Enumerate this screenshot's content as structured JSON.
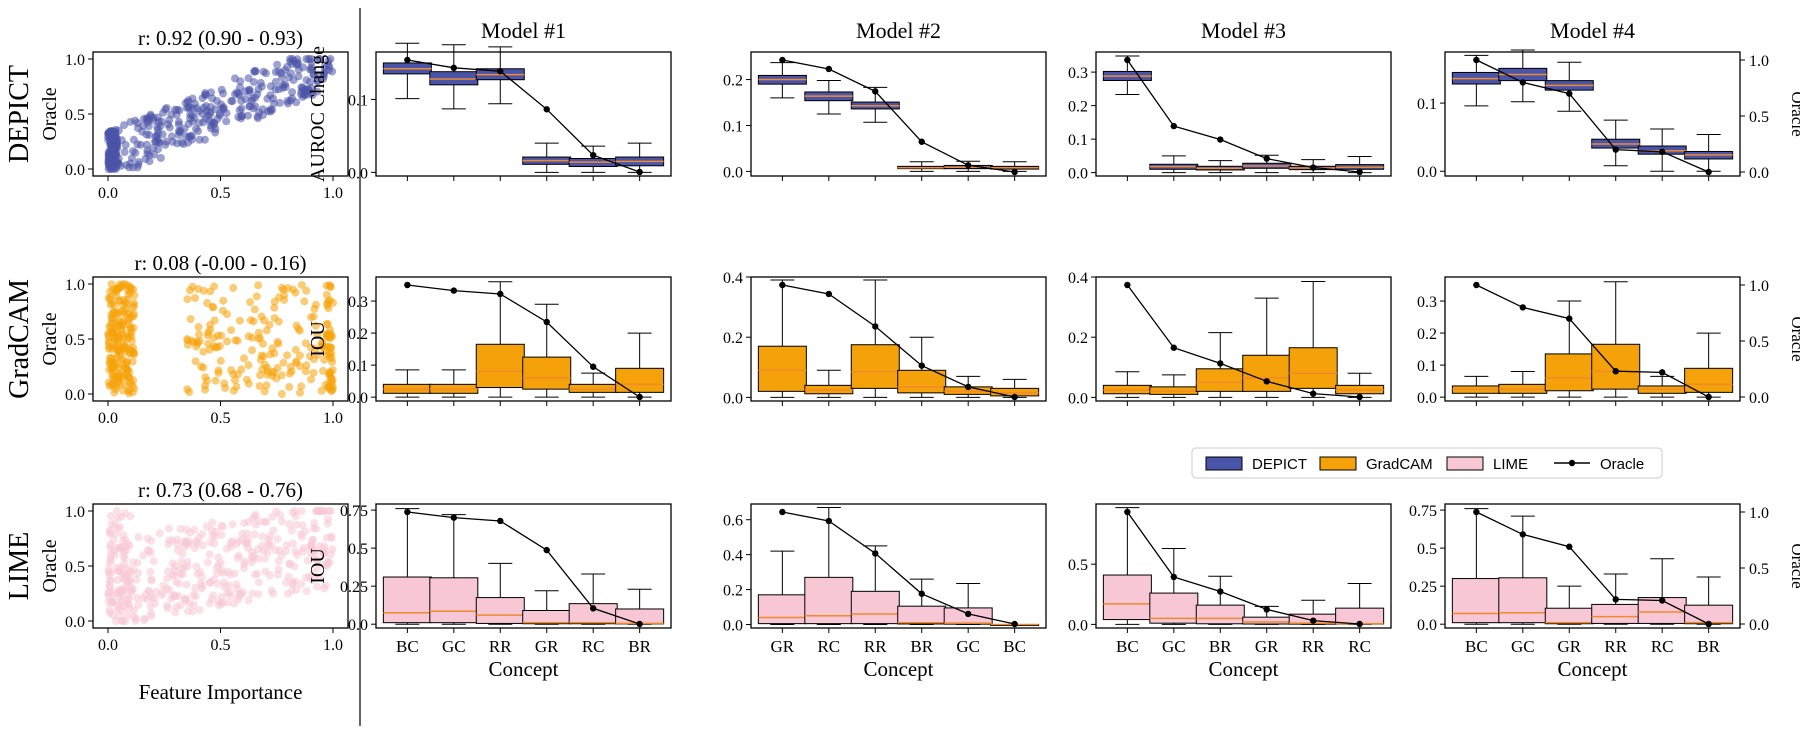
{
  "figure": {
    "divider": true
  },
  "colors": {
    "DEPICT": "#4a54a8",
    "GradCAM": "#f5a20a",
    "LIME": "#f8c7d6",
    "median": "#f08a2a",
    "oracle": "#000000"
  },
  "rows": [
    {
      "key": "DEPICT",
      "label": "DEPICT",
      "ylabel": "AUROC Change"
    },
    {
      "key": "GradCAM",
      "label": "GradCAM",
      "ylabel": "IOU"
    },
    {
      "key": "LIME",
      "label": "LIME",
      "ylabel": "IOU"
    }
  ],
  "scatter": {
    "ylabel": "Oracle",
    "xlabel": "Feature Importance",
    "xticks": [
      "0.0",
      "0.5",
      "1.0"
    ],
    "yticks": [
      "0.0",
      "0.5",
      "1.0"
    ],
    "panels": [
      {
        "method": "DEPICT",
        "r_text": "r: 0.92 (0.90 - 0.93)"
      },
      {
        "method": "GradCAM",
        "r_text": "r: 0.08 (-0.00 - 0.16)"
      },
      {
        "method": "LIME",
        "r_text": "r: 0.73 (0.68 - 0.76)"
      }
    ]
  },
  "legend": [
    {
      "label": "DEPICT",
      "kind": "box",
      "color": "#4a54a8"
    },
    {
      "label": "GradCAM",
      "kind": "box",
      "color": "#f5a20a"
    },
    {
      "label": "LIME",
      "kind": "box",
      "color": "#f8c7d6"
    },
    {
      "label": "Oracle",
      "kind": "line",
      "color": "#000000"
    }
  ],
  "chart_data": [
    {
      "type": "box",
      "model": "Model #1",
      "method": "DEPICT",
      "xlabel": "",
      "ylabel": "AUROC Change",
      "ylim": [
        -0.005,
        0.165
      ],
      "yticks": [
        0.0,
        0.1
      ],
      "oracle_axis_label": "",
      "oracle_ylim": [
        0,
        1
      ],
      "oracle_ticks": [],
      "categories": [
        "BC",
        "GC",
        "RR",
        "GR",
        "RC",
        "BR"
      ],
      "boxes": [
        [
          0.101,
          0.135,
          0.142,
          0.15,
          0.177
        ],
        [
          0.087,
          0.12,
          0.128,
          0.138,
          0.175
        ],
        [
          0.094,
          0.127,
          0.134,
          0.142,
          0.172
        ],
        [
          0.0,
          0.011,
          0.016,
          0.021,
          0.04
        ],
        [
          0.0,
          0.008,
          0.014,
          0.019,
          0.036
        ],
        [
          0.0,
          0.009,
          0.015,
          0.021,
          0.04
        ]
      ],
      "oracle": [
        1.0,
        0.93,
        0.9,
        0.56,
        0.15,
        0.0
      ]
    },
    {
      "type": "box",
      "model": "Model #2",
      "method": "DEPICT",
      "xlabel": "",
      "ylabel": "",
      "ylim": [
        -0.01,
        0.26
      ],
      "yticks": [
        0.0,
        0.1,
        0.2
      ],
      "oracle_axis_label": "",
      "oracle_ylim": [
        0,
        1
      ],
      "oracle_ticks": [],
      "categories": [
        "GR",
        "RC",
        "RR",
        "BR",
        "GC",
        "BC"
      ],
      "boxes": [
        [
          0.16,
          0.19,
          0.2,
          0.209,
          0.237
        ],
        [
          0.125,
          0.154,
          0.164,
          0.173,
          0.198
        ],
        [
          0.107,
          0.136,
          0.143,
          0.151,
          0.183
        ],
        [
          0.0,
          0.006,
          0.008,
          0.011,
          0.021
        ],
        [
          0.0,
          0.006,
          0.009,
          0.013,
          0.022
        ],
        [
          0.0,
          0.005,
          0.008,
          0.011,
          0.021
        ]
      ],
      "oracle": [
        1.0,
        0.92,
        0.72,
        0.27,
        0.06,
        0.0
      ]
    },
    {
      "type": "box",
      "model": "Model #3",
      "method": "DEPICT",
      "xlabel": "",
      "ylabel": "",
      "ylim": [
        -0.01,
        0.36
      ],
      "yticks": [
        0.0,
        0.1,
        0.2,
        0.3
      ],
      "oracle_axis_label": "",
      "oracle_ylim": [
        0,
        1
      ],
      "oracle_ticks": [],
      "categories": [
        "BC",
        "GC",
        "BR",
        "GR",
        "RR",
        "RC"
      ],
      "boxes": [
        [
          0.233,
          0.275,
          0.288,
          0.302,
          0.348
        ],
        [
          0.0,
          0.01,
          0.018,
          0.025,
          0.05
        ],
        [
          0.0,
          0.008,
          0.013,
          0.019,
          0.036
        ],
        [
          0.0,
          0.013,
          0.02,
          0.028,
          0.052
        ],
        [
          0.0,
          0.009,
          0.014,
          0.019,
          0.039
        ],
        [
          0.0,
          0.01,
          0.016,
          0.024,
          0.048
        ]
      ],
      "oracle": [
        1.0,
        0.41,
        0.29,
        0.12,
        0.04,
        0.0
      ]
    },
    {
      "type": "box",
      "model": "Model #4",
      "method": "DEPICT",
      "xlabel": "",
      "ylabel": "",
      "ylim": [
        -0.007,
        0.175
      ],
      "yticks": [
        0.0,
        0.1
      ],
      "oracle_axis_label": "Oracle",
      "oracle_ylim": [
        0,
        1
      ],
      "oracle_ticks": [
        "0.0",
        "0.5",
        "1.0"
      ],
      "categories": [
        "BC",
        "GC",
        "BR",
        "RR",
        "RC",
        "BR"
      ],
      "boxes": [
        [
          0.096,
          0.128,
          0.136,
          0.145,
          0.17
        ],
        [
          0.102,
          0.133,
          0.142,
          0.151,
          0.178
        ],
        [
          0.088,
          0.119,
          0.126,
          0.133,
          0.16
        ],
        [
          0.008,
          0.034,
          0.04,
          0.047,
          0.075
        ],
        [
          0.0,
          0.025,
          0.03,
          0.037,
          0.062
        ],
        [
          0.0,
          0.018,
          0.024,
          0.029,
          0.054
        ]
      ],
      "oracle": [
        1.0,
        0.8,
        0.7,
        0.2,
        0.18,
        0.0
      ]
    },
    {
      "type": "box",
      "model": "Model #1",
      "method": "GradCAM",
      "xlabel": "",
      "ylabel": "IOU",
      "ylim": [
        -0.012,
        0.375
      ],
      "yticks": [
        0.0,
        0.1,
        0.2,
        0.3
      ],
      "oracle_axis_label": "",
      "oracle_ylim": [
        0,
        1
      ],
      "oracle_ticks": [],
      "categories": [
        "BC",
        "GC",
        "RR",
        "GR",
        "RC",
        "BR"
      ],
      "boxes": [
        [
          0.0,
          0.012,
          0.025,
          0.04,
          0.085
        ],
        [
          0.0,
          0.012,
          0.025,
          0.04,
          0.085
        ],
        [
          0.0,
          0.03,
          0.08,
          0.165,
          0.36
        ],
        [
          0.0,
          0.025,
          0.06,
          0.125,
          0.29
        ],
        [
          0.0,
          0.015,
          0.025,
          0.04,
          0.075
        ],
        [
          0.0,
          0.015,
          0.04,
          0.09,
          0.2
        ]
      ],
      "oracle": [
        1.0,
        0.95,
        0.92,
        0.67,
        0.27,
        0.0
      ]
    },
    {
      "type": "box",
      "model": "Model #2",
      "method": "GradCAM",
      "xlabel": "",
      "ylabel": "",
      "ylim": [
        -0.012,
        0.4
      ],
      "yticks": [
        0.0,
        0.2,
        0.4
      ],
      "oracle_axis_label": "",
      "oracle_ylim": [
        0,
        1
      ],
      "oracle_ticks": [],
      "categories": [
        "GR",
        "RC",
        "RR",
        "BR",
        "GC",
        "BC"
      ],
      "boxes": [
        [
          0.0,
          0.02,
          0.09,
          0.17,
          0.39
        ],
        [
          0.0,
          0.012,
          0.025,
          0.04,
          0.09
        ],
        [
          0.0,
          0.03,
          0.085,
          0.175,
          0.39
        ],
        [
          0.0,
          0.015,
          0.035,
          0.09,
          0.2
        ],
        [
          0.0,
          0.01,
          0.02,
          0.035,
          0.07
        ],
        [
          0.0,
          0.005,
          0.015,
          0.03,
          0.06
        ]
      ],
      "oracle": [
        1.0,
        0.92,
        0.63,
        0.28,
        0.09,
        0.0
      ]
    },
    {
      "type": "box",
      "model": "Model #3",
      "method": "GradCAM",
      "xlabel": "",
      "ylabel": "",
      "ylim": [
        -0.012,
        0.4
      ],
      "yticks": [
        0.0,
        0.2,
        0.4
      ],
      "oracle_axis_label": "",
      "oracle_ylim": [
        0,
        1
      ],
      "oracle_ticks": [],
      "categories": [
        "BC",
        "GC",
        "BR",
        "GR",
        "RR",
        "RC"
      ],
      "boxes": [
        [
          0.0,
          0.012,
          0.025,
          0.04,
          0.085
        ],
        [
          0.0,
          0.01,
          0.02,
          0.035,
          0.075
        ],
        [
          0.0,
          0.02,
          0.05,
          0.095,
          0.215
        ],
        [
          0.0,
          0.02,
          0.065,
          0.14,
          0.33
        ],
        [
          0.0,
          0.03,
          0.08,
          0.165,
          0.385
        ],
        [
          0.0,
          0.012,
          0.025,
          0.04,
          0.08
        ]
      ],
      "oracle": [
        1.0,
        0.44,
        0.3,
        0.14,
        0.03,
        0.0
      ]
    },
    {
      "type": "box",
      "model": "Model #4",
      "method": "GradCAM",
      "xlabel": "",
      "ylabel": "",
      "ylim": [
        -0.012,
        0.375
      ],
      "yticks": [
        0.0,
        0.1,
        0.2,
        0.3
      ],
      "oracle_axis_label": "Oracle",
      "oracle_ylim": [
        0,
        1
      ],
      "oracle_ticks": [
        "0.0",
        "0.5",
        "1.0"
      ],
      "categories": [
        "BC",
        "GC",
        "BR",
        "RR",
        "RC",
        "BR"
      ],
      "boxes": [
        [
          0.0,
          0.012,
          0.025,
          0.035,
          0.065
        ],
        [
          0.0,
          0.012,
          0.025,
          0.04,
          0.08
        ],
        [
          0.0,
          0.02,
          0.06,
          0.135,
          0.3
        ],
        [
          0.0,
          0.025,
          0.08,
          0.165,
          0.36
        ],
        [
          0.0,
          0.012,
          0.025,
          0.035,
          0.065
        ],
        [
          0.0,
          0.015,
          0.04,
          0.09,
          0.2
        ]
      ],
      "oracle": [
        1.0,
        0.8,
        0.7,
        0.23,
        0.22,
        0.0
      ]
    },
    {
      "type": "box",
      "model": "Model #1",
      "method": "LIME",
      "xlabel": "Concept",
      "ylabel": "IOU",
      "ylim": [
        -0.025,
        0.79
      ],
      "yticks": [
        0.0,
        0.25,
        0.5,
        0.75
      ],
      "oracle_axis_label": "",
      "oracle_ylim": [
        0,
        1
      ],
      "oracle_ticks": [],
      "categories": [
        "BC",
        "GC",
        "RR",
        "GR",
        "RC",
        "BR"
      ],
      "boxes": [
        [
          0.0,
          0.01,
          0.075,
          0.31,
          0.76
        ],
        [
          0.0,
          0.01,
          0.085,
          0.305,
          0.72
        ],
        [
          0.0,
          0.005,
          0.06,
          0.175,
          0.4
        ],
        [
          0.0,
          0.003,
          0.01,
          0.09,
          0.22
        ],
        [
          0.0,
          0.003,
          0.01,
          0.135,
          0.33
        ],
        [
          0.0,
          0.002,
          0.005,
          0.1,
          0.23
        ]
      ],
      "oracle": [
        1.0,
        0.95,
        0.92,
        0.66,
        0.14,
        0.0
      ]
    },
    {
      "type": "box",
      "model": "Model #2",
      "method": "LIME",
      "xlabel": "Concept",
      "ylabel": "",
      "ylim": [
        -0.02,
        0.69
      ],
      "yticks": [
        0.0,
        0.2,
        0.4,
        0.6
      ],
      "oracle_axis_label": "",
      "oracle_ylim": [
        0,
        1
      ],
      "oracle_ticks": [],
      "categories": [
        "GR",
        "RC",
        "RR",
        "BR",
        "GC",
        "BC"
      ],
      "boxes": [
        [
          0.0,
          0.005,
          0.04,
          0.17,
          0.42
        ],
        [
          0.0,
          0.005,
          0.05,
          0.27,
          0.67
        ],
        [
          0.0,
          0.005,
          0.06,
          0.19,
          0.45
        ],
        [
          0.0,
          0.003,
          0.01,
          0.105,
          0.26
        ],
        [
          0.0,
          0.002,
          0.008,
          0.095,
          0.235
        ],
        [
          0.0,
          0.0,
          0.0,
          0.0,
          0.0
        ]
      ],
      "oracle": [
        1.0,
        0.92,
        0.63,
        0.27,
        0.09,
        0.0
      ]
    },
    {
      "type": "box",
      "model": "Model #3",
      "method": "LIME",
      "xlabel": "Concept",
      "ylabel": "",
      "ylim": [
        -0.03,
        1.0
      ],
      "yticks": [
        0.0,
        0.5
      ],
      "oracle_axis_label": "",
      "oracle_ylim": [
        0,
        1
      ],
      "oracle_ticks": [],
      "categories": [
        "BC",
        "GC",
        "BR",
        "GR",
        "RR",
        "RC"
      ],
      "boxes": [
        [
          0.0,
          0.04,
          0.17,
          0.41,
          0.97
        ],
        [
          0.0,
          0.01,
          0.05,
          0.26,
          0.63
        ],
        [
          0.0,
          0.005,
          0.05,
          0.16,
          0.4
        ],
        [
          0.0,
          0.003,
          0.02,
          0.06,
          0.15
        ],
        [
          0.0,
          0.002,
          0.01,
          0.085,
          0.2
        ],
        [
          0.0,
          0.002,
          0.005,
          0.135,
          0.34
        ]
      ],
      "oracle": [
        1.0,
        0.42,
        0.29,
        0.13,
        0.03,
        0.0
      ]
    },
    {
      "type": "box",
      "model": "Model #4",
      "method": "LIME",
      "xlabel": "Concept",
      "ylabel": "",
      "ylim": [
        -0.025,
        0.79
      ],
      "yticks": [
        0.0,
        0.25,
        0.5,
        0.75
      ],
      "oracle_axis_label": "Oracle",
      "oracle_ylim": [
        0,
        1
      ],
      "oracle_ticks": [
        "0.0",
        "0.5",
        "1.0"
      ],
      "categories": [
        "BC",
        "GC",
        "GR",
        "RR",
        "RC",
        "BR"
      ],
      "boxes": [
        [
          0.0,
          0.01,
          0.07,
          0.3,
          0.76
        ],
        [
          0.0,
          0.01,
          0.075,
          0.305,
          0.71
        ],
        [
          0.0,
          0.003,
          0.01,
          0.105,
          0.25
        ],
        [
          0.0,
          0.005,
          0.05,
          0.13,
          0.33
        ],
        [
          0.0,
          0.005,
          0.08,
          0.175,
          0.43
        ],
        [
          0.0,
          0.003,
          0.01,
          0.125,
          0.31
        ]
      ],
      "oracle": [
        1.0,
        0.8,
        0.69,
        0.22,
        0.21,
        0.0
      ]
    }
  ]
}
